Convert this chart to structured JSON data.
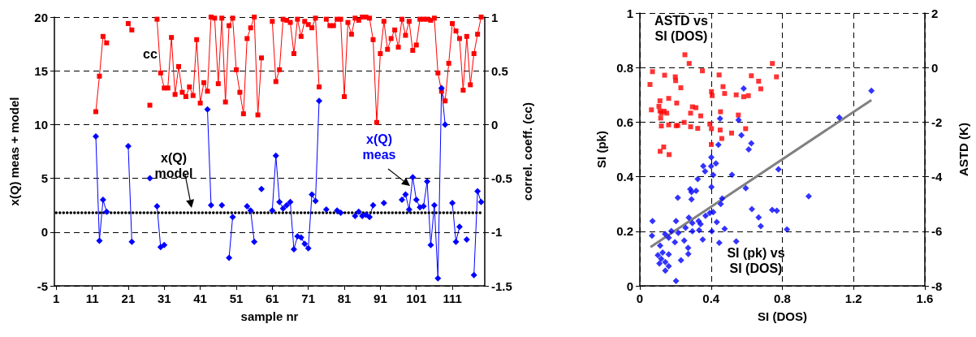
{
  "chart_data": [
    {
      "type": "line",
      "xlabel": "sample nr",
      "ylabel": "x(Q) meas + model",
      "y2label": "correl. coeff. (cc)",
      "x": [
        1,
        2,
        3,
        4,
        5,
        6,
        7,
        8,
        9,
        10,
        11,
        12,
        13,
        14,
        15,
        16,
        17,
        18,
        19,
        20,
        21,
        22,
        23,
        24,
        25,
        26,
        27,
        28,
        29,
        30,
        31,
        32,
        33,
        34,
        35,
        36,
        37,
        38,
        39,
        40,
        41,
        42,
        43,
        44,
        45,
        46,
        47,
        48,
        49,
        50,
        51,
        52,
        53,
        54,
        55,
        56,
        57,
        58,
        59,
        60,
        61,
        62,
        63,
        64,
        65,
        66,
        67,
        68,
        69,
        70,
        71,
        72,
        73,
        74,
        75,
        76,
        77,
        78,
        79,
        80,
        81,
        82,
        83,
        84,
        85,
        86,
        87,
        88,
        89,
        90,
        91,
        92,
        93,
        94,
        95,
        96,
        97,
        98,
        99,
        100,
        101,
        102,
        103,
        104,
        105,
        106,
        107,
        108,
        109,
        110,
        111,
        112,
        113,
        114,
        115,
        116,
        117,
        118,
        119
      ],
      "xlim": [
        0.5,
        120
      ],
      "xticks": [
        1,
        11,
        21,
        31,
        41,
        51,
        61,
        71,
        81,
        91,
        101,
        111
      ],
      "ylim": [
        -5,
        20
      ],
      "yticks": [
        -5,
        0,
        5,
        10,
        15,
        20
      ],
      "y2lim": [
        -1.5,
        1
      ],
      "y2ticks": [
        -1.5,
        -1,
        -0.5,
        0,
        0.5,
        1
      ],
      "grid": "y",
      "series": [
        {
          "name": "cc",
          "axis": "y2",
          "color": "#ff0000",
          "marker": "square",
          "values": [
            null,
            null,
            null,
            null,
            null,
            null,
            null,
            null,
            null,
            null,
            null,
            0.12,
            0.45,
            0.82,
            0.76,
            null,
            null,
            null,
            null,
            null,
            0.94,
            0.88,
            null,
            null,
            null,
            null,
            0.18,
            null,
            0.98,
            0.48,
            0.34,
            0.34,
            0.81,
            0.28,
            0.54,
            0.3,
            0.26,
            0.35,
            0.27,
            0.79,
            0.2,
            0.39,
            0.31,
            1.0,
            0.99,
            0.38,
            0.99,
            0.21,
            0.92,
            0.99,
            0.51,
            0.3,
            0.1,
            0.8,
            0.9,
            1.0,
            0.09,
            0.62,
            null,
            null,
            0.96,
            0.4,
            0.51,
            0.98,
            0.97,
            0.95,
            0.66,
            0.98,
            0.82,
            0.96,
            0.93,
            0.9,
            0.99,
            0.35,
            null,
            0.98,
            0.92,
            0.92,
            0.98,
            0.98,
            0.26,
            0.95,
            0.84,
            0.99,
            0.97,
            1.0,
            1.0,
            0.99,
            0.79,
            0.02,
            0.66,
            0.96,
            0.7,
            0.8,
            0.88,
            0.72,
            0.98,
            0.83,
            0.96,
            0.69,
            0.74,
            0.98,
            0.98,
            0.98,
            0.97,
            0.99,
            0.48,
            0.31,
            0.22,
            0.57,
            0.94,
            0.87,
            0.8,
            0.32,
            0.82,
            0.37,
            0.66,
            0.84,
            1.0
          ]
        },
        {
          "name": "x(Q) meas",
          "color": "#0000ff",
          "marker": "diamond",
          "values": [
            null,
            null,
            null,
            null,
            null,
            null,
            null,
            null,
            null,
            null,
            null,
            8.9,
            -0.8,
            3.0,
            1.9,
            null,
            null,
            null,
            null,
            null,
            8.0,
            -0.9,
            null,
            null,
            null,
            null,
            5.0,
            null,
            2.4,
            -1.4,
            -1.2,
            null,
            null,
            null,
            null,
            null,
            null,
            null,
            null,
            null,
            null,
            null,
            11.4,
            2.5,
            null,
            null,
            2.5,
            null,
            -2.4,
            1.4,
            null,
            null,
            null,
            2.4,
            2.0,
            -0.9,
            null,
            4.0,
            null,
            null,
            2.0,
            7.1,
            2.8,
            2.2,
            2.5,
            2.8,
            -1.6,
            -0.4,
            -0.5,
            -1.1,
            -1.5,
            3.5,
            2.9,
            12.2,
            null,
            2.1,
            null,
            null,
            2.0,
            1.8,
            null,
            null,
            null,
            1.5,
            1.9,
            1.5,
            1.6,
            1.4,
            2.5,
            null,
            null,
            2.7,
            null,
            null,
            null,
            null,
            3.0,
            3.5,
            2.1,
            5.1,
            3.0,
            2.3,
            2.4,
            4.7,
            -1.2,
            2.5,
            -4.3,
            13.4,
            10.0,
            null,
            2.7,
            -0.9,
            0.5,
            null,
            -0.7,
            null,
            -4.0,
            3.8,
            2.8
          ]
        },
        {
          "name": "x(Q) model",
          "color": "#000000",
          "marker": "none",
          "line_style": "dotted",
          "values": [
            1.8,
            1.8,
            1.8,
            1.8,
            1.8,
            1.8,
            1.8,
            1.8,
            1.8,
            1.8,
            1.8,
            1.8,
            1.8,
            1.8,
            1.8,
            1.8,
            1.8,
            1.8,
            1.8,
            1.8,
            1.8,
            1.8,
            1.8,
            1.8,
            1.8,
            1.8,
            1.8,
            1.8,
            1.8,
            1.8,
            1.8,
            1.8,
            1.8,
            1.8,
            1.8,
            1.8,
            1.8,
            1.8,
            1.8,
            1.8,
            1.8,
            1.8,
            1.8,
            1.8,
            1.8,
            1.8,
            1.8,
            1.8,
            1.8,
            1.8,
            1.8,
            1.8,
            1.8,
            1.8,
            1.8,
            1.8,
            1.8,
            1.8,
            1.8,
            1.8,
            1.8,
            1.8,
            1.8,
            1.8,
            1.8,
            1.8,
            1.8,
            1.8,
            1.8,
            1.8,
            1.8,
            1.8,
            1.8,
            1.8,
            1.8,
            1.8,
            1.8,
            1.8,
            1.8,
            1.8,
            1.8,
            1.8,
            1.8,
            1.8,
            1.8,
            1.8,
            1.8,
            1.8,
            1.8,
            1.8,
            1.8,
            1.8,
            1.8,
            1.8,
            1.8,
            1.8,
            1.8,
            1.8,
            1.8,
            1.8,
            1.8,
            1.8,
            1.8,
            1.8,
            1.8,
            1.8,
            1.8,
            1.8,
            1.8,
            1.8,
            1.8,
            1.8,
            1.8,
            1.8,
            1.8,
            1.8,
            1.8,
            1.8,
            1.8
          ]
        }
      ]
    },
    {
      "type": "scatter",
      "xlabel": "SI (DOS)",
      "ylabel": "SI (pk)",
      "y2label": "ASTD (K)",
      "xlim": [
        0,
        1.6
      ],
      "xticks": [
        0,
        0.4,
        0.8,
        1.2,
        1.6
      ],
      "ylim": [
        0,
        1
      ],
      "yticks": [
        0,
        0.2,
        0.4,
        0.6,
        0.8,
        1
      ],
      "y2lim": [
        -8,
        2
      ],
      "y2ticks": [
        -8,
        -6,
        -4,
        -2,
        0,
        2
      ],
      "grid": true,
      "series": [
        {
          "name": "ASTD vs SI (DOS)",
          "axis": "y2",
          "color": "#ff0000",
          "marker": "square",
          "x": [
            0.253,
            0.277,
            0.351,
            0.071,
            0.139,
            0.199,
            0.201,
            0.23,
            0.445,
            0.626,
            0.667,
            0.679,
            0.744,
            0.767,
            0.467,
            0.476,
            0.541,
            0.583,
            0.609,
            0.402,
            0.406,
            0.113,
            0.162,
            0.207,
            0.065,
            0.107,
            0.113,
            0.121,
            0.136,
            0.151,
            0.117,
            0.295,
            0.315,
            0.285,
            0.342,
            0.453,
            0.553,
            0.249,
            0.204,
            0.213,
            0.162,
            0.121,
            0.285,
            0.325,
            0.393,
            0.402,
            0.451,
            0.515,
            0.594,
            0.46,
            0.401,
            0.134,
            0.114,
            0.164,
            0.057
          ],
          "values": [
            0.47,
            0.15,
            -0.12,
            -0.15,
            -0.28,
            -0.34,
            -0.48,
            -0.74,
            -0.27,
            -0.3,
            -0.5,
            -0.78,
            0.15,
            -0.34,
            -0.7,
            -0.95,
            -1.0,
            -1.07,
            -1.03,
            -0.88,
            -1.03,
            -1.22,
            -1.13,
            -1.3,
            -1.55,
            -1.42,
            -1.59,
            -1.67,
            -1.6,
            -1.67,
            -1.85,
            -1.44,
            -1.47,
            -1.67,
            -1.77,
            -1.62,
            -1.74,
            -2.01,
            -2.13,
            -2.12,
            -2.1,
            -2.14,
            -2.17,
            -2.23,
            -2.07,
            -2.24,
            -2.29,
            -2.4,
            -2.24,
            -2.6,
            -2.82,
            -2.91,
            -3.07,
            -3.19,
            -0.62
          ]
        },
        {
          "name": "SI (pk) vs SI (DOS)",
          "color": "#0000ff",
          "marker": "diamond",
          "x": [
            1.3,
            1.12,
            0.583,
            0.554,
            0.45,
            0.57,
            0.626,
            0.611,
            0.441,
            0.401,
            0.427,
            0.356,
            0.366,
            0.4,
            0.412,
            0.517,
            0.778,
            0.325,
            0.283,
            0.316,
            0.29,
            0.29,
            0.213,
            0.402,
            0.595,
            0.948,
            0.462,
            0.454,
            0.629,
            0.743,
            0.769,
            0.667,
            0.679,
            0.826,
            0.412,
            0.393,
            0.369,
            0.275,
            0.33,
            0.341,
            0.295,
            0.203,
            0.071,
            0.432,
            0.476,
            0.404,
            0.295,
            0.333,
            0.257,
            0.216,
            0.177,
            0.142,
            0.068,
            0.162,
            0.197,
            0.249,
            0.353,
            0.446,
            0.541,
            0.114,
            0.271,
            0.272,
            0.101,
            0.128,
            0.162,
            0.12,
            0.11,
            0.143,
            0.162,
            0.143,
            0.231,
            0.203
          ],
          "values": [
            0.715,
            0.617,
            0.723,
            0.608,
            0.613,
            0.552,
            0.522,
            0.5,
            0.517,
            0.471,
            0.449,
            0.439,
            0.42,
            0.438,
            0.406,
            0.407,
            0.427,
            0.391,
            0.354,
            0.348,
            0.344,
            0.317,
            0.323,
            0.362,
            0.358,
            0.328,
            0.32,
            0.3,
            0.281,
            0.278,
            0.275,
            0.251,
            0.219,
            0.207,
            0.27,
            0.267,
            0.257,
            0.25,
            0.237,
            0.226,
            0.23,
            0.237,
            0.237,
            0.234,
            0.209,
            0.2,
            0.2,
            0.204,
            0.213,
            0.194,
            0.201,
            0.19,
            0.184,
            0.176,
            0.16,
            0.166,
            0.17,
            0.158,
            0.163,
            0.147,
            0.139,
            0.117,
            0.112,
            0.122,
            0.115,
            0.099,
            0.082,
            0.087,
            0.072,
            0.056,
            0.094,
            0.018
          ]
        },
        {
          "type": "line",
          "color": "#808080",
          "marker": "none",
          "x": [
            0.06,
            1.3
          ],
          "values": [
            0.142,
            0.681
          ]
        }
      ]
    }
  ]
}
